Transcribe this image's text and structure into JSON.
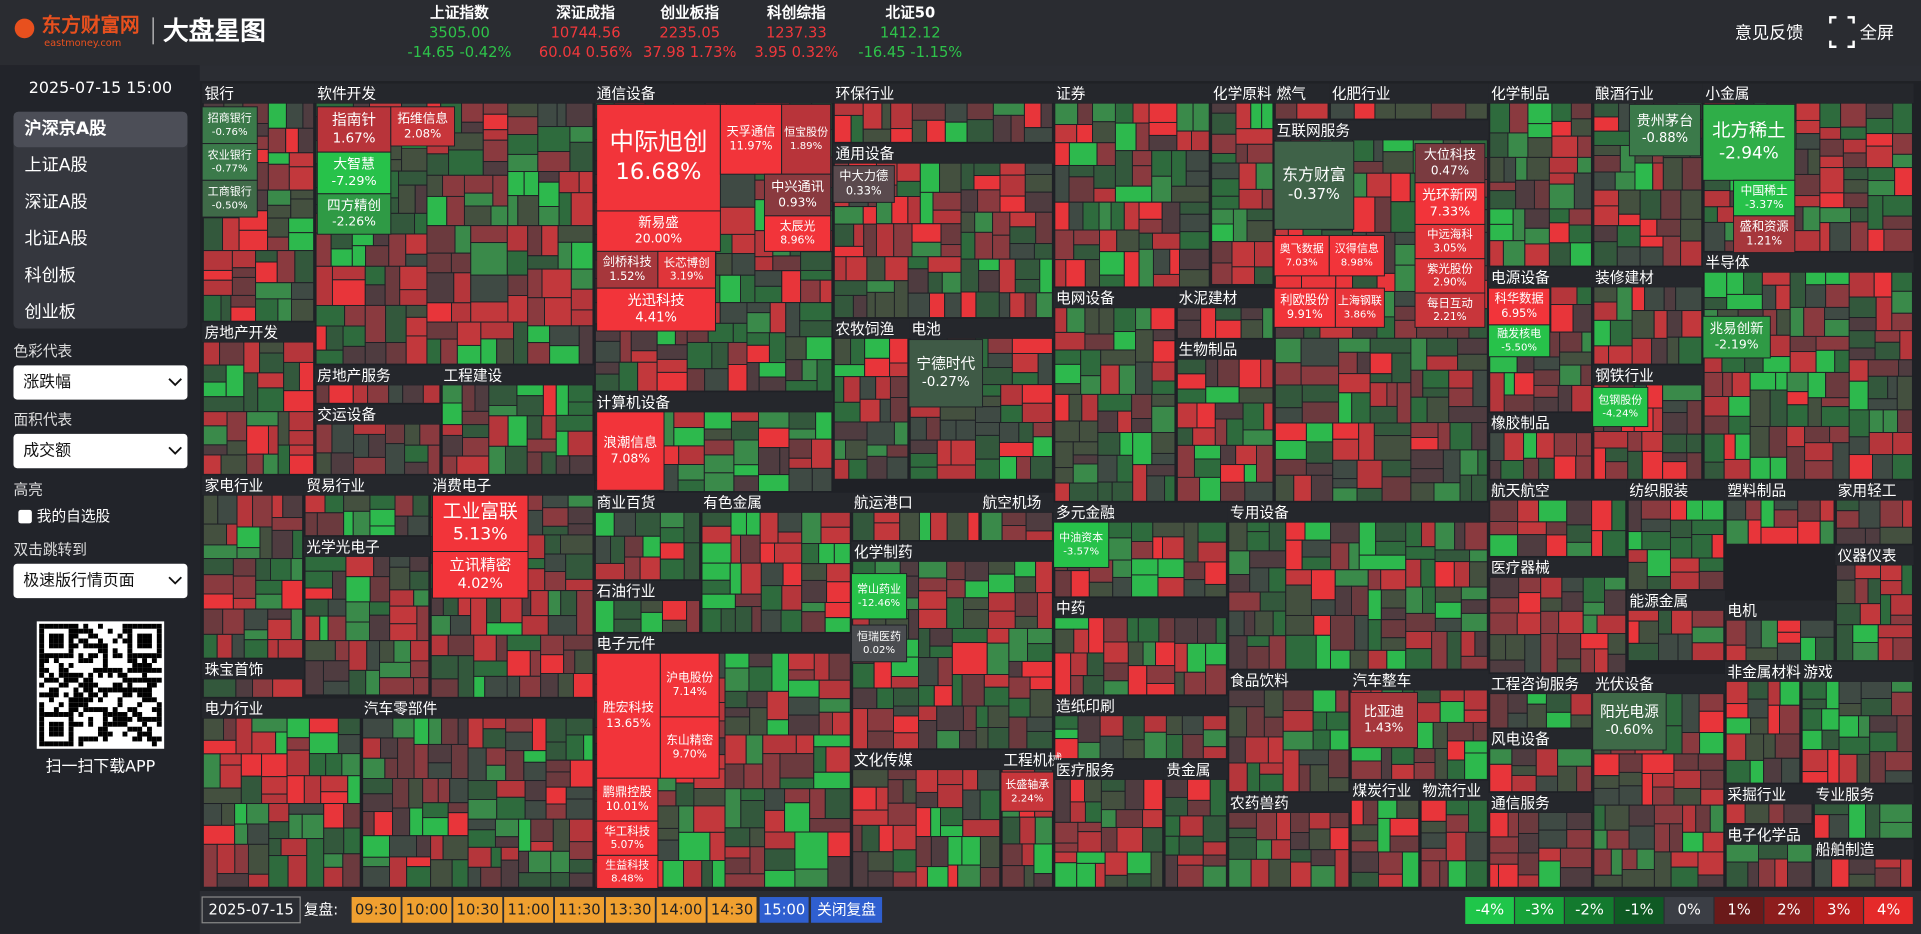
{
  "header": {
    "logo": "东方财富网",
    "logo_en": "eastmoney.com",
    "title": "大盘星图",
    "feedback": "意见反馈",
    "fullscreen": "全屏",
    "indices": [
      {
        "name": "上证指数",
        "value": "3505.00",
        "change": "-14.65 -0.42%",
        "color": "#2ec34a"
      },
      {
        "name": "深证成指",
        "value": "10744.56",
        "change": "60.04 0.56%",
        "color": "#f0383c"
      },
      {
        "name": "创业板指",
        "value": "2235.05",
        "change": "37.98 1.73%",
        "color": "#f0383c"
      },
      {
        "name": "科创综指",
        "value": "1237.33",
        "change": "3.95 0.32%",
        "color": "#f0383c"
      },
      {
        "name": "北证50",
        "value": "1412.12",
        "change": "-16.45 -1.15%",
        "color": "#2ec34a"
      }
    ]
  },
  "sidebar": {
    "datetime": "2025-07-15 15:00",
    "markets": [
      "沪深京A股",
      "上证A股",
      "深证A股",
      "北证A股",
      "科创板",
      "创业板"
    ],
    "color_label": "色彩代表",
    "color_option": "涨跌幅",
    "area_label": "面积代表",
    "area_option": "成交额",
    "highlight": "高亮",
    "watchlist": "我的自选股",
    "dblclick": "双击跳转到",
    "dblclick_option": "极速版行情页面",
    "qr_caption": "扫一扫下载APP"
  },
  "sectors": [
    "银行",
    "软件开发",
    "通信设备",
    "环保行业",
    "证券",
    "化学原料",
    "燃气",
    "化肥行业",
    "化学制品",
    "酿酒行业",
    "小金属",
    "互联网服务",
    "通用设备",
    "农牧饲渔",
    "电池",
    "电网设备",
    "水泥建材",
    "生物制品",
    "电源设备",
    "装修建材",
    "钢铁行业",
    "半导体",
    "橡胶制品",
    "房地产开发",
    "房地产服务",
    "交运设备",
    "工程建设",
    "计算机设备",
    "家电行业",
    "贸易行业",
    "光学光电子",
    "消费电子",
    "商业百货",
    "石油行业",
    "有色金属",
    "航运港口",
    "航空机场",
    "化学制药",
    "多元金融",
    "专用设备",
    "航天航空",
    "纺织服装",
    "塑料制品",
    "家用轻工",
    "仪器仪表",
    "医疗器械",
    "能源金属",
    "电机",
    "中药",
    "电子元件",
    "珠宝首饰",
    "电力行业",
    "汽车零部件",
    "食品饮料",
    "汽车整车",
    "工程咨询服务",
    "光伏设备",
    "非金属材料",
    "游戏",
    "造纸印刷",
    "文化传媒",
    "工程机械",
    "医疗服务",
    "贵金属",
    "风电设备",
    "农药兽药",
    "煤炭行业",
    "物流行业",
    "通信服务",
    "采掘行业",
    "专业服务",
    "电子化学品",
    "船舶制造"
  ],
  "stocks": [
    {
      "name": "招商银行",
      "change": "-0.76%",
      "color": "#3b7a4a"
    },
    {
      "name": "农业银行",
      "change": "-0.77%",
      "color": "#3b7a4a"
    },
    {
      "name": "工商银行",
      "change": "-0.50%",
      "color": "#3f6a48"
    },
    {
      "name": "指南针",
      "change": "1.67%",
      "color": "#b8343a"
    },
    {
      "name": "大智慧",
      "change": "-7.29%",
      "color": "#27c24a"
    },
    {
      "name": "四方精创",
      "change": "-2.26%",
      "color": "#2f9a45"
    },
    {
      "name": "拓维信息",
      "change": "2.08%",
      "color": "#c8363b"
    },
    {
      "name": "中际旭创",
      "change": "16.68%",
      "color": "#f2343a"
    },
    {
      "name": "新易盛",
      "change": "20.00%",
      "color": "#f2343a"
    },
    {
      "name": "天孚通信",
      "change": "11.97%",
      "color": "#f2343a"
    },
    {
      "name": "恒宝股份",
      "change": "1.89%",
      "color": "#b8343a"
    },
    {
      "name": "中兴通讯",
      "change": "0.93%",
      "color": "#8a3a3f"
    },
    {
      "name": "太辰光",
      "change": "8.96%",
      "color": "#f2343a"
    },
    {
      "name": "剑桥科技",
      "change": "1.52%",
      "color": "#a6373c"
    },
    {
      "name": "长芯博创",
      "change": "3.19%",
      "color": "#e0353a"
    },
    {
      "name": "光迅科技",
      "change": "4.41%",
      "color": "#f2343a"
    },
    {
      "name": "中大力德",
      "change": "0.33%",
      "color": "#5a4a4e"
    },
    {
      "name": "东方财富",
      "change": "-0.37%",
      "color": "#3f6248"
    },
    {
      "name": "大位科技",
      "change": "0.47%",
      "color": "#7a3b40"
    },
    {
      "name": "光环新网",
      "change": "7.33%",
      "color": "#f2343a"
    },
    {
      "name": "中远海科",
      "change": "3.05%",
      "color": "#e0353a"
    },
    {
      "name": "紫光股份",
      "change": "2.90%",
      "color": "#d8353a"
    },
    {
      "name": "每日互动",
      "change": "2.21%",
      "color": "#c8363b"
    },
    {
      "name": "奥飞数据",
      "change": "7.03%",
      "color": "#f2343a"
    },
    {
      "name": "汉得信息",
      "change": "8.98%",
      "color": "#f2343a"
    },
    {
      "name": "利欧股份",
      "change": "9.91%",
      "color": "#f2343a"
    },
    {
      "name": "上海钢联",
      "change": "3.86%",
      "color": "#e8353a"
    },
    {
      "name": "宁德时代",
      "change": "-0.27%",
      "color": "#3f5a46"
    },
    {
      "name": "北方稀土",
      "change": "-2.94%",
      "color": "#2fae48"
    },
    {
      "name": "中国稀土",
      "change": "-3.37%",
      "color": "#27c24a"
    },
    {
      "name": "盛和资源",
      "change": "1.21%",
      "color": "#a6373c"
    },
    {
      "name": "贵州茅台",
      "change": "-0.88%",
      "color": "#3b7a4a"
    },
    {
      "name": "科华数据",
      "change": "6.95%",
      "color": "#f2343a"
    },
    {
      "name": "融发核电",
      "change": "-5.50%",
      "color": "#27c24a"
    },
    {
      "name": "兆易创新",
      "change": "-2.19%",
      "color": "#2f9a45"
    },
    {
      "name": "包钢股份",
      "change": "-4.24%",
      "color": "#27c24a"
    },
    {
      "name": "浪潮信息",
      "change": "7.08%",
      "color": "#f2343a"
    },
    {
      "name": "工业富联",
      "change": "5.13%",
      "color": "#f2343a"
    },
    {
      "name": "立讯精密",
      "change": "4.02%",
      "color": "#f2343a"
    },
    {
      "name": "中油资本",
      "change": "-3.57%",
      "color": "#27c24a"
    },
    {
      "name": "常山药业",
      "change": "-12.46%",
      "color": "#27c24a"
    },
    {
      "name": "恒瑞医药",
      "change": "0.02%",
      "color": "#4a4c50"
    },
    {
      "name": "胜宏科技",
      "change": "13.65%",
      "color": "#f2343a"
    },
    {
      "name": "沪电股份",
      "change": "7.14%",
      "color": "#f2343a"
    },
    {
      "name": "东山精密",
      "change": "9.70%",
      "color": "#f2343a"
    },
    {
      "name": "鹏鼎控股",
      "change": "10.01%",
      "color": "#f2343a"
    },
    {
      "name": "华工科技",
      "change": "5.07%",
      "color": "#f2343a"
    },
    {
      "name": "生益科技",
      "change": "8.48%",
      "color": "#f2343a"
    },
    {
      "name": "比亚迪",
      "change": "1.43%",
      "color": "#a6373c"
    },
    {
      "name": "阳光电源",
      "change": "-0.60%",
      "color": "#3f6a48"
    },
    {
      "name": "长盛轴承",
      "change": "2.24%",
      "color": "#c8363b"
    }
  ],
  "footer": {
    "date": "2025-07-15",
    "replay": "复盘:",
    "times": [
      "09:30",
      "10:00",
      "10:30",
      "11:00",
      "11:30",
      "13:30",
      "14:00",
      "14:30"
    ],
    "current": "15:00",
    "close": "关闭复盘",
    "legend": [
      {
        "label": "-4%",
        "color": "#1fc64a"
      },
      {
        "label": "-3%",
        "color": "#17a33a"
      },
      {
        "label": "-2%",
        "color": "#137a2e"
      },
      {
        "label": "-1%",
        "color": "#0f5a24"
      },
      {
        "label": "0%",
        "color": "#3b3e45"
      },
      {
        "label": "1%",
        "color": "#6a1a1a"
      },
      {
        "label": "2%",
        "color": "#8d1d1d"
      },
      {
        "label": "3%",
        "color": "#b81f1f"
      },
      {
        "label": "4%",
        "color": "#e52a2a"
      }
    ]
  }
}
